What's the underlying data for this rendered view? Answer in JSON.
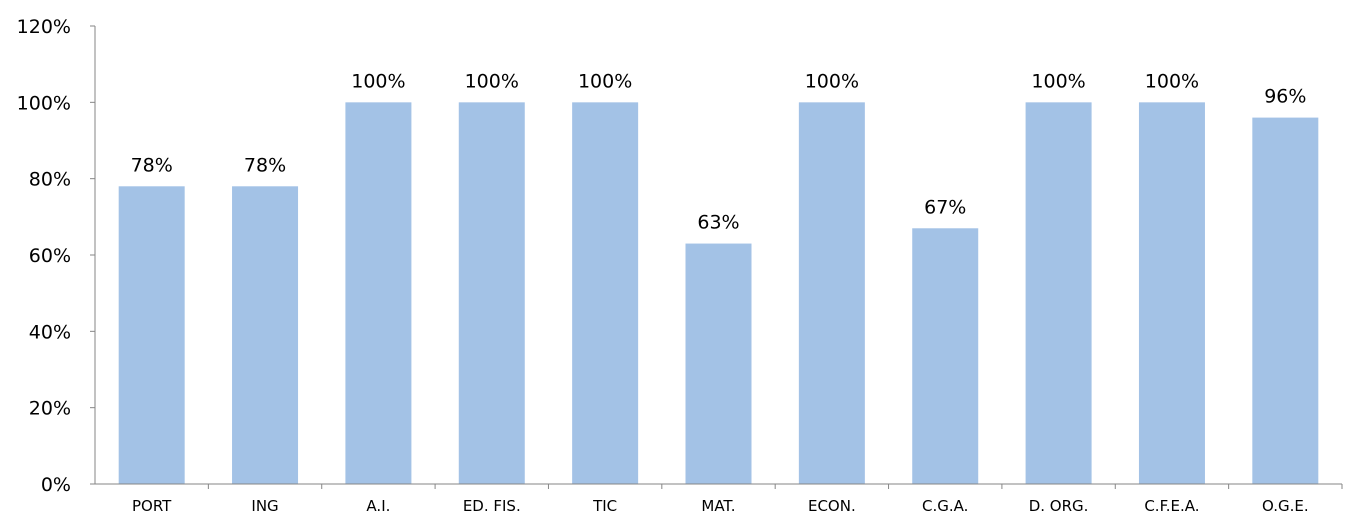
{
  "chart_data": {
    "type": "bar",
    "title": "",
    "xlabel": "",
    "ylabel": "",
    "categories": [
      "PORT",
      "ING",
      "A.I.",
      "ED. FIS.",
      "TIC",
      "MAT.",
      "ECON.",
      "C.G.A.",
      "D. ORG.",
      "C.F.E.A.",
      "O.G.E."
    ],
    "values": [
      78,
      78,
      100,
      100,
      100,
      63,
      100,
      67,
      100,
      100,
      96
    ],
    "data_labels": [
      "78%",
      "78%",
      "100%",
      "100%",
      "100%",
      "63%",
      "100%",
      "67%",
      "100%",
      "100%",
      "96%"
    ],
    "ylim": [
      0,
      120
    ],
    "yticks": [
      0,
      20,
      40,
      60,
      80,
      100,
      120
    ],
    "ytick_labels": [
      "0%",
      "20%",
      "40%",
      "60%",
      "80%",
      "100%",
      "120%"
    ],
    "grid": false,
    "legend": "none",
    "bar_color": "#a3c2e6",
    "axis_color": "#868686"
  }
}
